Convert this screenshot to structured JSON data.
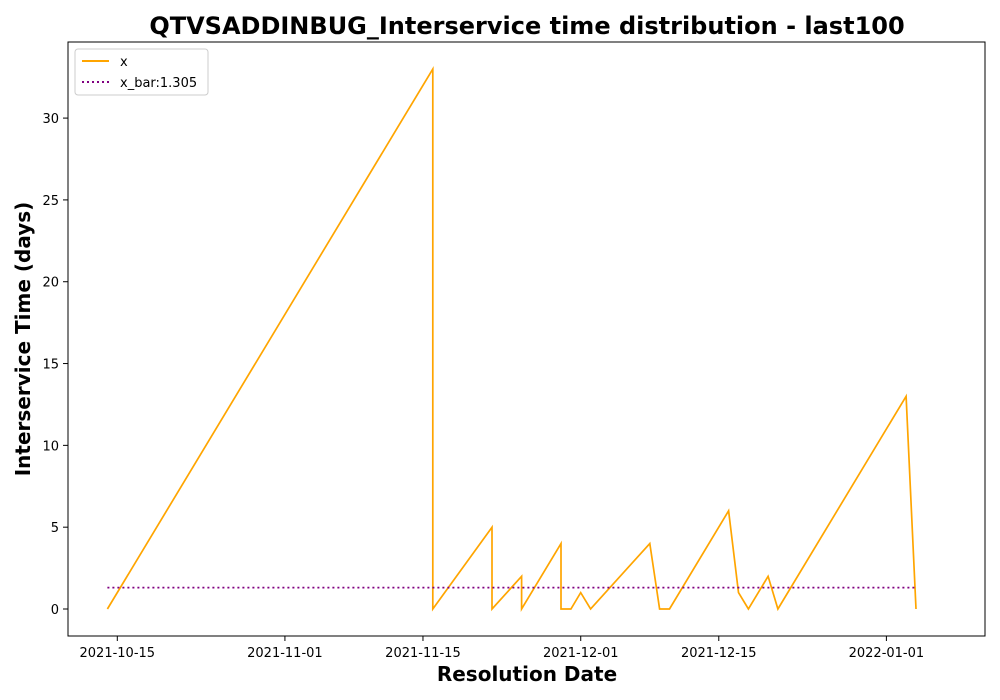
{
  "chart_data": {
    "type": "line",
    "title": "QTVSADDINBUG_Interservice time distribution - last100",
    "xlabel": "Resolution Date",
    "ylabel": "Interservice Time (days)",
    "x_ticks": [
      "2021-10-15",
      "2021-11-01",
      "2021-11-15",
      "2021-12-01",
      "2021-12-15",
      "2022-01-01"
    ],
    "y_ticks": [
      "0",
      "5",
      "10",
      "15",
      "20",
      "25",
      "30"
    ],
    "ylim": [
      -1.65,
      34.65
    ],
    "xlim": [
      "2021-10-10",
      "2022-01-11"
    ],
    "grid": false,
    "legend_position": "top-left",
    "series": [
      {
        "name": "x",
        "color": "#ffa500",
        "style": "solid",
        "x": [
          "2021-10-14",
          "2021-11-16",
          "2021-11-16",
          "2021-11-22",
          "2021-11-22",
          "2021-11-25",
          "2021-11-25",
          "2021-11-29",
          "2021-11-29",
          "2021-11-30",
          "2021-12-01",
          "2021-12-02",
          "2021-12-02",
          "2021-12-08",
          "2021-12-09",
          "2021-12-10",
          "2021-12-16",
          "2021-12-17",
          "2021-12-18",
          "2021-12-20",
          "2021-12-21",
          "2022-01-03",
          "2022-01-04",
          "2022-01-04"
        ],
        "y": [
          0,
          33,
          0,
          5,
          0,
          2,
          0,
          4,
          0,
          0,
          1,
          0,
          0,
          4,
          0,
          0,
          6,
          1,
          0,
          2,
          0,
          13,
          0,
          0
        ]
      },
      {
        "name": "x_bar:1.305",
        "color": "#800080",
        "style": "dotted",
        "x": [
          "2021-10-14",
          "2022-01-04"
        ],
        "y": [
          1.305,
          1.305
        ]
      }
    ]
  }
}
